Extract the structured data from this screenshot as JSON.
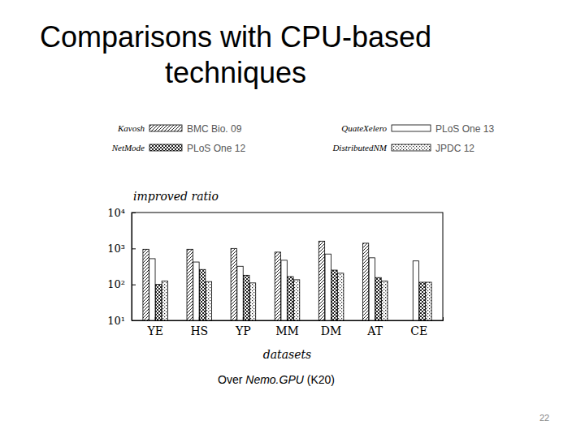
{
  "slide": {
    "title": [
      "Comparisons with CPU-based",
      "techniques"
    ],
    "caption": {
      "prefix": "Over",
      "emphasis": "Nemo.GPU",
      "suffix": "(K20)"
    },
    "page": 22
  },
  "chart_data": {
    "type": "bar",
    "y_label": "improved ratio",
    "x_label": "datasets",
    "categories": [
      "YE",
      "HS",
      "YP",
      "MM",
      "DM",
      "AT",
      "CE"
    ],
    "series": [
      {
        "name": "Kavosh",
        "citation": "BMC Bio. 09",
        "color": "#222222",
        "values": [
          950,
          950,
          1000,
          790,
          1600,
          1400,
          null
        ]
      },
      {
        "name": "QuateXelero",
        "citation": "PLoS One 13",
        "color": "#222222",
        "values": [
          520,
          420,
          320,
          470,
          700,
          550,
          450
        ]
      },
      {
        "name": "NetMode",
        "citation": "PLoS One 12",
        "color": "#222222",
        "values": [
          100,
          260,
          180,
          165,
          250,
          155,
          115
        ]
      },
      {
        "name": "DistributedNM",
        "citation": "JPDC 12",
        "color": "#222222",
        "values": [
          125,
          120,
          110,
          135,
          205,
          125,
          115
        ]
      }
    ],
    "log": "y",
    "grid": false,
    "legend": "top",
    "ylim": [
      10,
      10000
    ],
    "yticks": [
      {
        "value": 10,
        "label": "10¹"
      },
      {
        "value": 100,
        "label": "10²"
      },
      {
        "value": 1000,
        "label": "10³"
      },
      {
        "value": 10000,
        "label": "10⁴"
      }
    ]
  }
}
